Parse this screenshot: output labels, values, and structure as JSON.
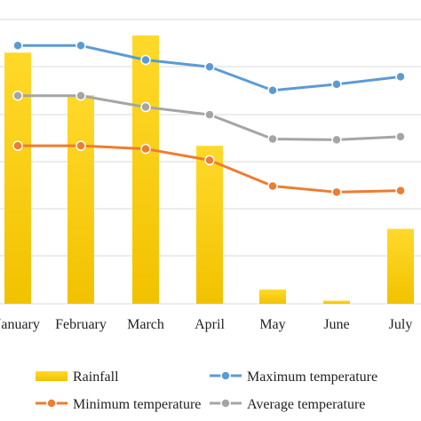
{
  "chart_data": {
    "type": "bar+line",
    "categories": [
      "January",
      "February",
      "March",
      "April",
      "May",
      "June",
      "July"
    ],
    "series": [
      {
        "name": "Rainfall",
        "kind": "bar",
        "axis": "left",
        "color": "#f2c200",
        "values": [
          248,
          206,
          265,
          156,
          14,
          3,
          74
        ]
      },
      {
        "name": "Maximum temperature",
        "kind": "line",
        "axis": "right",
        "color": "#5b9bd5",
        "values": [
          34.0,
          34.0,
          32.1,
          31.2,
          28.1,
          28.9,
          29.9
        ]
      },
      {
        "name": "Minimum temperature",
        "kind": "line",
        "axis": "right",
        "color": "#ed7d31",
        "values": [
          20.8,
          20.8,
          20.4,
          18.9,
          15.5,
          14.7,
          14.9
        ]
      },
      {
        "name": "Average temperature",
        "kind": "line",
        "axis": "right",
        "color": "#a5a5a5",
        "values": [
          27.4,
          27.4,
          25.9,
          24.9,
          21.7,
          21.6,
          22.0
        ]
      }
    ],
    "ylim_left": [
      0,
      300
    ],
    "ylim_right": [
      0,
      40
    ],
    "grid": true,
    "legend_position": "bottom"
  }
}
